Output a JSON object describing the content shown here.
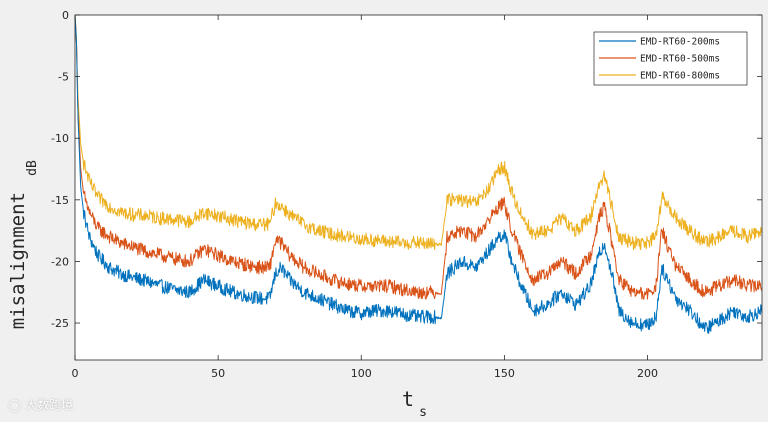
{
  "chart_data": {
    "type": "line",
    "title": "",
    "xlabel": "t",
    "xlabel_subscript": "s",
    "ylabel": "misalignment",
    "ylabel_subscript": "dB",
    "xlim": [
      0,
      240
    ],
    "ylim": [
      -28,
      0
    ],
    "x_ticks": [
      "0",
      "50",
      "100",
      "150",
      "200"
    ],
    "y_ticks": [
      "0",
      "-5",
      "-10",
      "-15",
      "-20",
      "-25"
    ],
    "legend_position": "top-right",
    "grid": false,
    "x": [
      0,
      0.5,
      1,
      2,
      3,
      5,
      8,
      12,
      16,
      20,
      25,
      30,
      35,
      40,
      45,
      50,
      55,
      60,
      65,
      68,
      70,
      72,
      75,
      80,
      85,
      90,
      95,
      100,
      105,
      110,
      115,
      120,
      125,
      128,
      130,
      135,
      140,
      145,
      148,
      150,
      152,
      155,
      160,
      165,
      170,
      175,
      180,
      183,
      185,
      188,
      190,
      195,
      200,
      203,
      205,
      210,
      215,
      220,
      225,
      230,
      235,
      240
    ],
    "series": [
      {
        "name": "EMD-RT60-200ms",
        "color": "#0072bd",
        "values": [
          0,
          -2,
          -8,
          -14,
          -16,
          -18,
          -19.5,
          -20.5,
          -21,
          -21.3,
          -21.6,
          -22,
          -22.3,
          -22.5,
          -21.5,
          -22,
          -22.5,
          -22.8,
          -23,
          -23,
          -21,
          -20.5,
          -21.5,
          -22.5,
          -23,
          -23.5,
          -24,
          -24.2,
          -24,
          -24,
          -24.3,
          -24.5,
          -24.5,
          -24.6,
          -21,
          -20,
          -20.5,
          -19,
          -18,
          -17.8,
          -19.5,
          -21.5,
          -24,
          -23.5,
          -22.5,
          -23.5,
          -22,
          -19.5,
          -18.5,
          -21.5,
          -24,
          -25,
          -25.2,
          -24.5,
          -20.5,
          -23,
          -24,
          -25.5,
          -24.8,
          -24,
          -24.5,
          -24
        ]
      },
      {
        "name": "EMD-RT60-500ms",
        "color": "#d95319",
        "values": [
          0,
          -2,
          -7.5,
          -12.5,
          -14.5,
          -16,
          -17.3,
          -18,
          -18.5,
          -18.8,
          -19.2,
          -19.5,
          -19.8,
          -20,
          -19,
          -19.5,
          -20,
          -20.3,
          -20.5,
          -20.5,
          -18.3,
          -18.5,
          -19.5,
          -20.5,
          -21,
          -21.5,
          -21.8,
          -22,
          -22,
          -22,
          -22.3,
          -22.5,
          -22.5,
          -22.6,
          -18,
          -17.5,
          -18,
          -16.5,
          -15.5,
          -15.3,
          -17,
          -19,
          -21.5,
          -21,
          -20,
          -21,
          -19.5,
          -16.5,
          -15.5,
          -19,
          -21.5,
          -22.5,
          -22.7,
          -22,
          -17.5,
          -20.5,
          -21.5,
          -22.5,
          -22,
          -21.5,
          -22,
          -22
        ]
      },
      {
        "name": "EMD-RT60-800ms",
        "color": "#edb120",
        "values": [
          0,
          -2,
          -6.5,
          -10.5,
          -12,
          -13.5,
          -14.8,
          -15.5,
          -16,
          -16.2,
          -16.3,
          -16.5,
          -16.6,
          -16.8,
          -16,
          -16.3,
          -16.6,
          -16.9,
          -17,
          -17,
          -15.3,
          -15.5,
          -16.2,
          -17,
          -17.5,
          -17.8,
          -18,
          -18.2,
          -18.3,
          -18.4,
          -18.5,
          -18.5,
          -18.6,
          -18.6,
          -15,
          -15,
          -15.3,
          -14,
          -12.5,
          -12.3,
          -14,
          -15.8,
          -17.8,
          -17.5,
          -16.5,
          -17.5,
          -16.5,
          -13.8,
          -13,
          -16,
          -18,
          -18.5,
          -18.5,
          -18,
          -14.8,
          -16.5,
          -17.5,
          -18.5,
          -18,
          -17.5,
          -18,
          -17.5
        ]
      }
    ]
  },
  "watermark": {
    "text": "大数跨境",
    "icon": "camera-logo-icon"
  }
}
